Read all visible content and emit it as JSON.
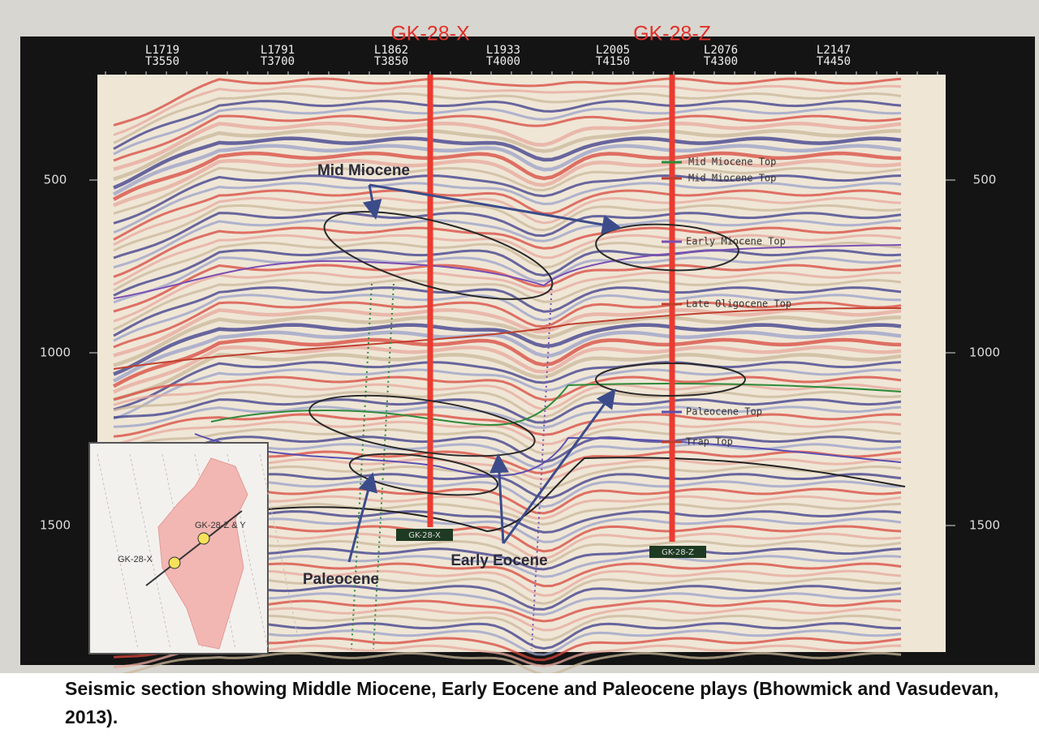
{
  "figure": {
    "wells": [
      "GK-28-X",
      "GK-28-Z"
    ],
    "traces": [
      [
        "L1719",
        "T3550"
      ],
      [
        "L1791",
        "T3700"
      ],
      [
        "L1862",
        "T3850"
      ],
      [
        "L1933",
        "T4000"
      ],
      [
        "L2005",
        "T4150"
      ],
      [
        "L2076",
        "T4300"
      ],
      [
        "L2147",
        "T4450"
      ]
    ],
    "depth_ticks": [
      500,
      1000,
      1500
    ],
    "horizons": [
      "Mid Miocene Top",
      "Mid Miocene Top",
      "Early Miocene Top",
      "Late Oligocene Top",
      "Paleocene Top",
      "Trap Top"
    ],
    "annotations": [
      "Mid Miocene",
      "Early Eocene",
      "Paleocene"
    ],
    "well_tags": [
      "GK-28-X",
      "GK-28-Z"
    ],
    "inset": {
      "labels": [
        "GK-28-X",
        "GK-28-Z & Y"
      ]
    },
    "caption": "Seismic section showing Middle Miocene, Early Eocene and Paleocene plays (Bhowmick and Vasudevan, 2013)."
  }
}
